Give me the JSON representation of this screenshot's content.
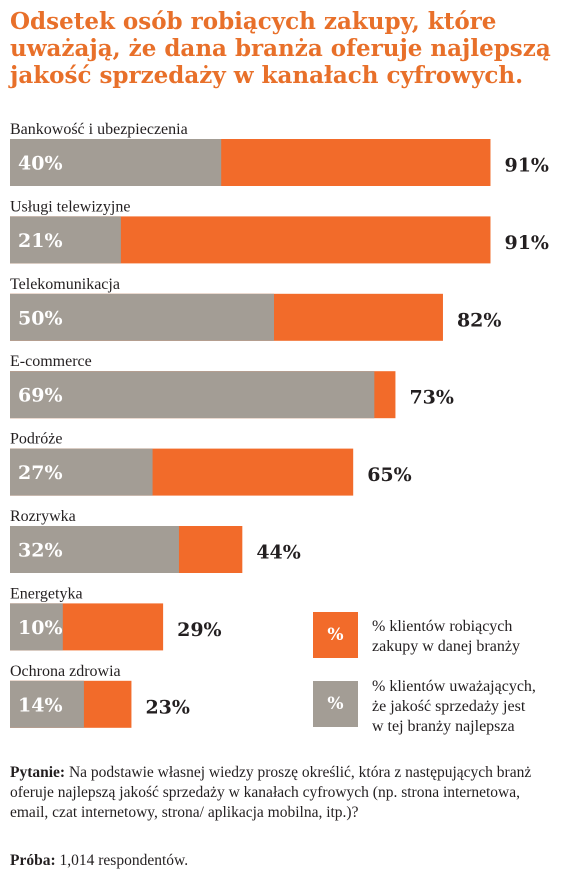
{
  "title": "Odsetek osób robiących zakupy, które uważają, że dana branża oferuje najlepszą jakość sprzedaży w kanałach cyfrowych.",
  "colors": {
    "buyers": "#f26b2a",
    "quality": "#a39d95",
    "title": "#e8702a"
  },
  "chart_data": {
    "type": "bar",
    "orientation": "horizontal",
    "categories": [
      "Bankowość i ubezpieczenia",
      "Usługi telewizyjne",
      "Telekomunikacja",
      "E-commerce",
      "Podróże",
      "Rozrywka",
      "Energetyka",
      "Ochrona zdrowia"
    ],
    "series": [
      {
        "name": "% klientów robiących zakupy w danej branży",
        "values": [
          91,
          91,
          82,
          73,
          65,
          44,
          29,
          23
        ],
        "labels": [
          "91%",
          "91%",
          "82%",
          "73%",
          "65%",
          "44%",
          "29%",
          "23%"
        ]
      },
      {
        "name": "% klientów uważających, że jakość sprzedaży jest w tej branży najlepsza",
        "values": [
          40,
          21,
          50,
          69,
          27,
          32,
          10,
          14
        ],
        "labels": [
          "40%",
          "21%",
          "50%",
          "69%",
          "27%",
          "32%",
          "10%",
          "14%"
        ]
      }
    ],
    "xlim": [
      0,
      100
    ],
    "grid": false,
    "legend_position": "bottom-right"
  },
  "legend": {
    "box_label": "%",
    "items": [
      {
        "line1": "% klientów robiących",
        "line2": "zakupy w danej branży",
        "line3": ""
      },
      {
        "line1": "% klientów uważających,",
        "line2": "że jakość sprzedaży jest",
        "line3": "w tej branży najlepsza"
      }
    ]
  },
  "question": {
    "label": "Pytanie:",
    "text": " Na podstawie własnej wiedzy proszę określić, która z następujących branż oferuje najlepszą jakość sprzedaży w kanałach cyfrowych (np. strona internetowa, email, czat internetowy,  strona/ aplikacja mobilna, itp.)?"
  },
  "sample": {
    "label": "Próba:",
    "text": " 1,014 respondentów."
  }
}
